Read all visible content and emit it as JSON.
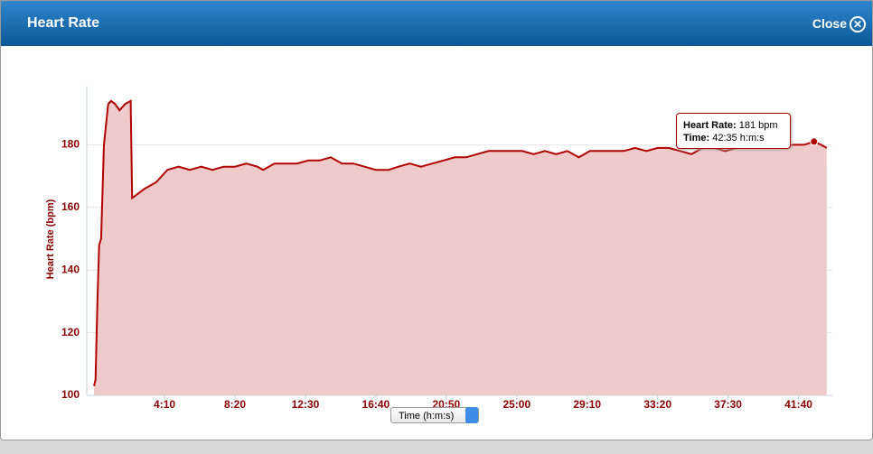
{
  "dialog": {
    "title": "Heart Rate",
    "close": "Close"
  },
  "chart_data": {
    "type": "area",
    "y_label": "Heart Rate (bpm)",
    "x_label": "Time (h:m:s)",
    "x": [
      0,
      5,
      12,
      18,
      25,
      35,
      50,
      60,
      75,
      90,
      110,
      130,
      135,
      150,
      180,
      220,
      260,
      300,
      340,
      380,
      420,
      460,
      500,
      540,
      580,
      600,
      640,
      680,
      720,
      760,
      800,
      840,
      880,
      920,
      960,
      1000,
      1045,
      1080,
      1120,
      1160,
      1200,
      1240,
      1280,
      1320,
      1360,
      1400,
      1440,
      1480,
      1520,
      1560,
      1600,
      1640,
      1680,
      1720,
      1760,
      1800,
      1840,
      1880,
      1920,
      1960,
      2000,
      2040,
      2080,
      2120,
      2160,
      2200,
      2240,
      2280,
      2320,
      2360,
      2400,
      2440,
      2480,
      2520,
      2555,
      2580,
      2600
    ],
    "series": [
      {
        "name": "Heart Rate",
        "color": "#b00000",
        "values": [
          103,
          105,
          130,
          148,
          150,
          180,
          193,
          194,
          193,
          191,
          193,
          194,
          163,
          164,
          166,
          168,
          172,
          173,
          172,
          173,
          172,
          173,
          173,
          174,
          173,
          172,
          174,
          174,
          174,
          175,
          175,
          176,
          174,
          174,
          173,
          172,
          172,
          173,
          174,
          173,
          174,
          175,
          176,
          176,
          177,
          178,
          178,
          178,
          178,
          177,
          178,
          177,
          178,
          176,
          178,
          178,
          178,
          178,
          179,
          178,
          179,
          179,
          178,
          177,
          179,
          179,
          178,
          179,
          179,
          180,
          180,
          179,
          180,
          180,
          181,
          180,
          179
        ]
      }
    ],
    "xlim": [
      -26,
      2620
    ],
    "ylim": [
      100,
      200
    ],
    "xticks": [
      {
        "value": 250,
        "label": "4:10"
      },
      {
        "value": 500,
        "label": "8:20"
      },
      {
        "value": 750,
        "label": "12:30"
      },
      {
        "value": 1000,
        "label": "16:40"
      },
      {
        "value": 1250,
        "label": "20:50"
      },
      {
        "value": 1500,
        "label": "25:00"
      },
      {
        "value": 1750,
        "label": "29:10"
      },
      {
        "value": 2000,
        "label": "33:20"
      },
      {
        "value": 2250,
        "label": "37:30"
      },
      {
        "value": 2500,
        "label": "41:40"
      }
    ],
    "yticks": [
      100,
      120,
      140,
      160,
      180
    ],
    "grid": true,
    "tooltip": {
      "index": 74,
      "rows": [
        [
          "Heart Rate:",
          "181 bpm"
        ],
        [
          "Time:",
          "42:35 h:m:s"
        ]
      ]
    }
  }
}
